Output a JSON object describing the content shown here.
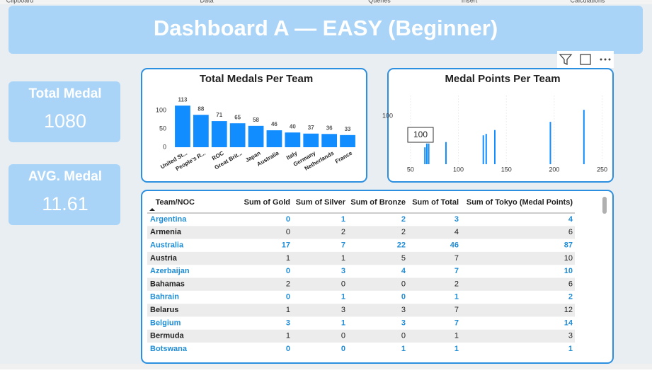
{
  "ribbon": [
    "Clipboard",
    "Data",
    "Queries",
    "Insert",
    "Calculations"
  ],
  "header": {
    "title": "Dashboard A — EASY (Beginner)"
  },
  "cards": [
    {
      "label": "Total Medal",
      "value": 1080
    },
    {
      "label": "AVG. Medal",
      "value": 11.61
    }
  ],
  "chart_data": [
    {
      "type": "bar",
      "title": "Total Medals Per Team",
      "categories": [
        "United St...",
        "People's R...",
        "ROC",
        "Great Brit...",
        "Japan",
        "Australia",
        "Italy",
        "Germany",
        "Netherlands",
        "France"
      ],
      "values": [
        113,
        88,
        71,
        65,
        58,
        46,
        40,
        37,
        36,
        33
      ],
      "color": "#118dff",
      "ylim": [
        0,
        120
      ],
      "yticks": [
        0,
        50,
        100
      ],
      "grid": false
    },
    {
      "type": "bar",
      "title": "Medal Points Per Team",
      "x": [
        65,
        67,
        69,
        87,
        126,
        129,
        138,
        196,
        231
      ],
      "values": [
        35,
        43,
        43,
        46,
        60,
        63,
        71,
        88,
        113
      ],
      "color": "#118dff",
      "xlim": [
        39,
        257
      ],
      "xticks": [
        50,
        100,
        150,
        200,
        250
      ],
      "ylim": [
        0,
        120
      ],
      "yticks": [
        100
      ],
      "grid": true,
      "annotations": [
        "100"
      ]
    }
  ],
  "table": {
    "columns": [
      "Team/NOC",
      "Sum of Gold",
      "Sum of Silver",
      "Sum of Bronze",
      "Sum of Total",
      "Sum of Tokyo (Medal Points)"
    ],
    "rows": [
      [
        "Argentina",
        0,
        1,
        2,
        3,
        4
      ],
      [
        "Armenia",
        0,
        2,
        2,
        4,
        6
      ],
      [
        "Australia",
        17,
        7,
        22,
        46,
        87
      ],
      [
        "Austria",
        1,
        1,
        5,
        7,
        10
      ],
      [
        "Azerbaijan",
        0,
        3,
        4,
        7,
        10
      ],
      [
        "Bahamas",
        2,
        0,
        0,
        2,
        6
      ],
      [
        "Bahrain",
        0,
        1,
        0,
        1,
        2
      ],
      [
        "Belarus",
        1,
        3,
        3,
        7,
        12
      ],
      [
        "Belgium",
        3,
        1,
        3,
        7,
        14
      ],
      [
        "Bermuda",
        1,
        0,
        0,
        1,
        3
      ],
      [
        "Botswana",
        0,
        0,
        1,
        1,
        1
      ]
    ]
  }
}
